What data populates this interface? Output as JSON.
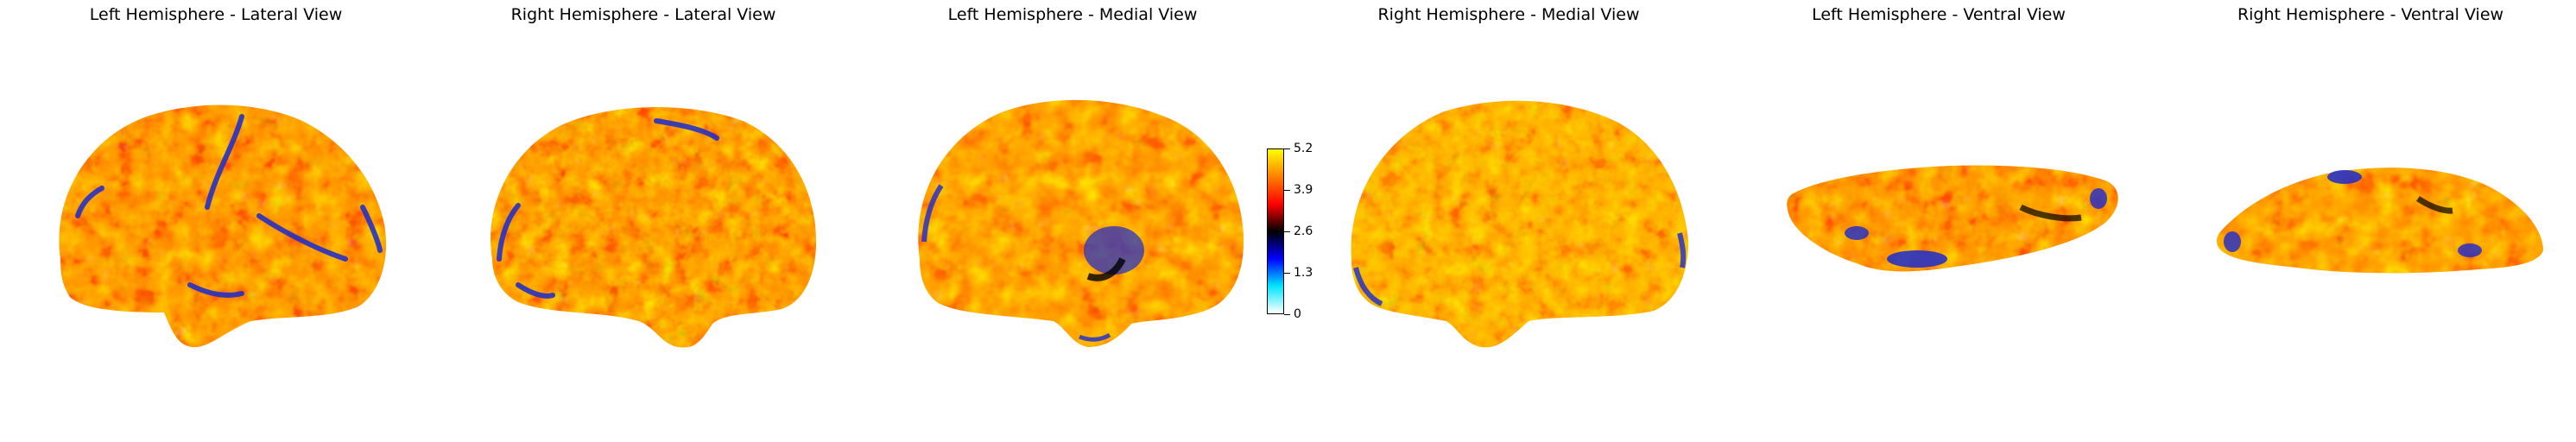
{
  "panels": [
    {
      "title": "Left Hemisphere - Lateral View",
      "view": "lateral",
      "hemisphere": "left"
    },
    {
      "title": "Right Hemisphere - Lateral View",
      "view": "lateral",
      "hemisphere": "right"
    },
    {
      "title": "Left Hemisphere - Medial View",
      "view": "medial",
      "hemisphere": "left"
    },
    {
      "title": "Right Hemisphere - Medial View",
      "view": "medial",
      "hemisphere": "right"
    },
    {
      "title": "Left Hemisphere - Ventral View",
      "view": "ventral",
      "hemisphere": "left"
    },
    {
      "title": "Right Hemisphere - Ventral View",
      "view": "ventral",
      "hemisphere": "right"
    }
  ],
  "colorbar": {
    "min": 0,
    "max": 5.2,
    "ticks": [
      "0",
      "1.3",
      "2.6",
      "3.9",
      "5.2"
    ],
    "colormap": [
      "#ffffff",
      "#00e5ff",
      "#0000ff",
      "#000000",
      "#ff0000",
      "#ff8000",
      "#ffff00"
    ]
  },
  "colors": {
    "hot_yellow": "#ffe500",
    "hot_orange": "#ff8a00",
    "hot_red": "#e01000",
    "dark_red": "#6a0000",
    "blue": "#1030e0",
    "background": "#ffffff"
  }
}
